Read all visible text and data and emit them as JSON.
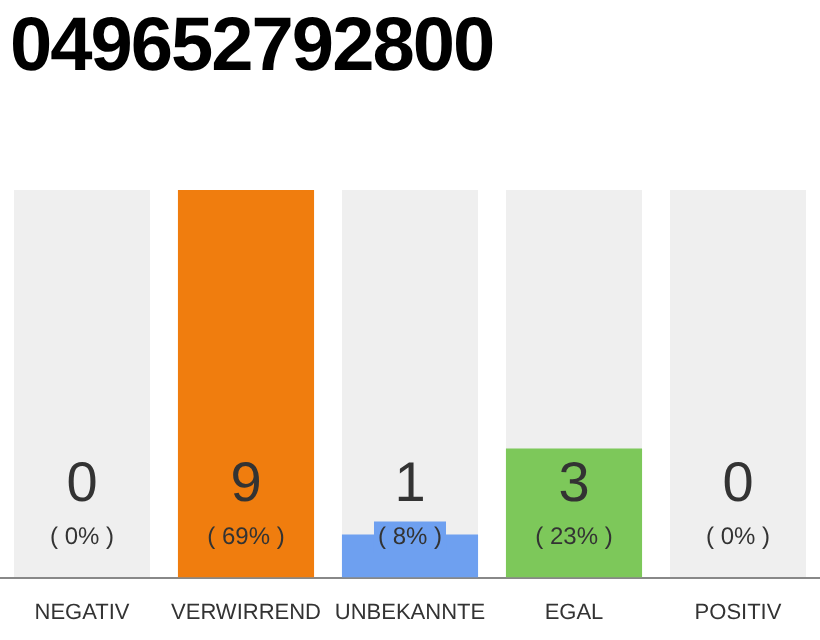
{
  "chart_data": {
    "type": "bar",
    "title": "049652792800",
    "categories": [
      "NEGATIV",
      "VERWIRREND",
      "UNBEKANNTE",
      "EGAL",
      "POSITIV"
    ],
    "values": [
      0,
      9,
      1,
      3,
      0
    ],
    "colors": [
      "#bbbbbb",
      "#f07d0e",
      "#6ea0f0",
      "#7dc85a",
      "#bbbbbb"
    ],
    "data_labels": true,
    "annotations": [
      "( 0% )",
      "( 69% )",
      "( 8% )",
      "( 23% )",
      "( 0% )"
    ]
  }
}
